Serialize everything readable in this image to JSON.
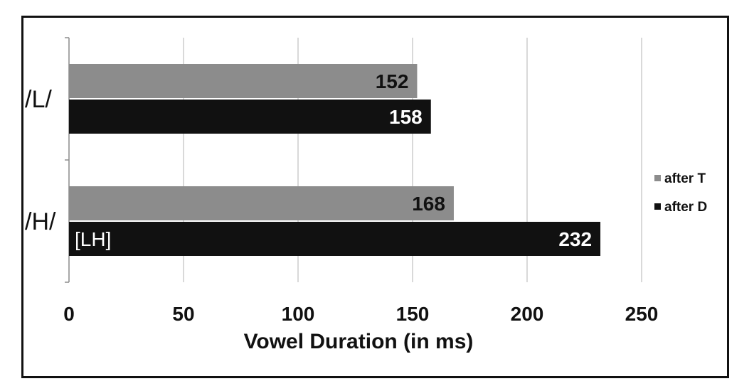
{
  "chart_data": {
    "type": "bar",
    "orientation": "horizontal",
    "title": "",
    "xlabel": "Vowel Duration  (in ms)",
    "ylabel": "",
    "xlim": [
      0,
      250
    ],
    "x_ticks": [
      0,
      50,
      100,
      150,
      200,
      250
    ],
    "categories": [
      "/L/",
      "/H/"
    ],
    "series": [
      {
        "name": "after T",
        "color": "#8c8c8c",
        "label_color": "#111111",
        "values": [
          152,
          168
        ]
      },
      {
        "name": "after D",
        "color": "#111111",
        "label_color": "#ffffff",
        "values": [
          158,
          232
        ]
      }
    ],
    "annotations": [
      {
        "text": "[LH]",
        "category": "/H/",
        "series": "after D"
      }
    ],
    "grid": true,
    "legend": "right"
  }
}
